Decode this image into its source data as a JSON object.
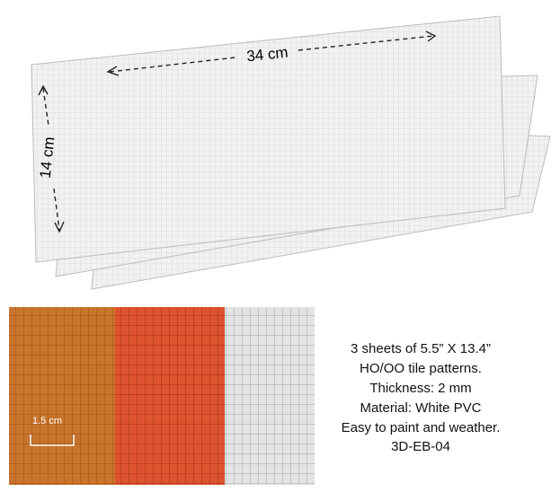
{
  "dimensions": {
    "length": "34 cm",
    "width": "14 cm",
    "tile": "1.5 cm"
  },
  "description": [
    "3 sheets of 5.5” X 13.4”",
    "HO/OO tile patterns.",
    "Thickness: 2 mm",
    "Material: White PVC",
    "Easy to paint and weather.",
    "3D-EB-04"
  ]
}
